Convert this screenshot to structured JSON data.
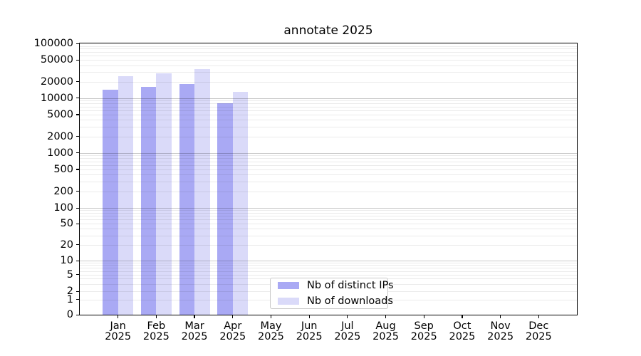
{
  "chart_data": {
    "type": "bar",
    "title": "annotate 2025",
    "categories": [
      "Jan",
      "Feb",
      "Mar",
      "Apr",
      "May",
      "Jun",
      "Jul",
      "Aug",
      "Sep",
      "Oct",
      "Nov",
      "Dec"
    ],
    "x_year_label": "2025",
    "series": [
      {
        "name": "Nb of distinct IPs",
        "color": "#a9a9f4",
        "values": [
          14000,
          16000,
          18000,
          8000,
          0,
          0,
          0,
          0,
          0,
          0,
          0,
          0
        ]
      },
      {
        "name": "Nb of downloads",
        "color": "#dadaf9",
        "values": [
          25000,
          28000,
          34000,
          13000,
          0,
          0,
          0,
          0,
          0,
          0,
          0,
          0
        ]
      }
    ],
    "y_scale": "symlog",
    "ylim": [
      0,
      100000
    ],
    "y_ticks": [
      0,
      1,
      2,
      5,
      10,
      20,
      50,
      100,
      200,
      500,
      1000,
      2000,
      5000,
      10000,
      20000,
      50000,
      100000
    ],
    "grid": "both",
    "legend_position": "lower center",
    "colors": {
      "background": "#ffffff",
      "axis": "#000000",
      "text": "#000000",
      "major_grid": "#c9c9c9",
      "minor_grid": "#ebebeb",
      "bar_distinct_ips": "#a9a9f4",
      "bar_downloads": "#dadaf9"
    }
  }
}
